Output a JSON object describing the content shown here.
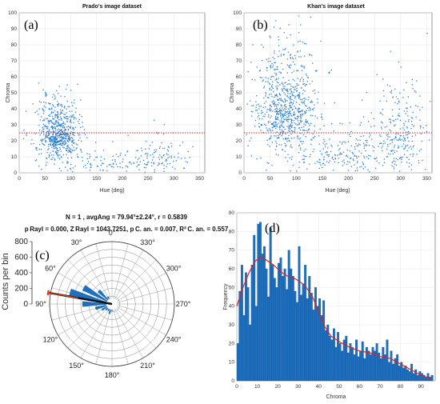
{
  "chart_data": [
    {
      "panel_label": "(a)",
      "type": "scatter",
      "title": "Prado's image dataset",
      "xlabel": "Hue (deg)",
      "ylabel": "Chroma",
      "xlim": [
        0,
        360
      ],
      "ylim": [
        0,
        100
      ],
      "xticks": [
        0,
        50,
        100,
        150,
        200,
        250,
        300,
        350
      ],
      "yticks": [
        0,
        10,
        20,
        30,
        40,
        50,
        60,
        70,
        80,
        90,
        100
      ],
      "threshold_line": {
        "y": 25,
        "color": "#e02020",
        "style": "dotted"
      },
      "point_color": "#2a7fd4",
      "clusters": [
        {
          "hue_center": 75,
          "hue_spread": 20,
          "chroma_center": 25,
          "chroma_spread": 12,
          "count": 650
        },
        {
          "hue_center": 270,
          "hue_spread": 25,
          "chroma_center": 12,
          "chroma_spread": 9,
          "count": 80
        },
        {
          "hue_center": 180,
          "hue_spread": 70,
          "chroma_center": 6,
          "chroma_spread": 5,
          "count": 140
        }
      ]
    },
    {
      "panel_label": "(b)",
      "type": "scatter",
      "title": "Khan's image dataset",
      "xlabel": "Hue (deg)",
      "ylabel": "Chroma",
      "xlim": [
        0,
        360
      ],
      "ylim": [
        0,
        100
      ],
      "xticks": [
        0,
        50,
        100,
        150,
        200,
        250,
        300,
        350
      ],
      "yticks": [
        0,
        10,
        20,
        30,
        40,
        50,
        60,
        70,
        80,
        90,
        100
      ],
      "threshold_line": {
        "y": 25,
        "color": "#e02020",
        "style": "dotted"
      },
      "point_color": "#2a7fd4",
      "clusters": [
        {
          "hue_center": 80,
          "hue_spread": 30,
          "chroma_center": 40,
          "chroma_spread": 22,
          "count": 800
        },
        {
          "hue_center": 300,
          "hue_spread": 25,
          "chroma_center": 25,
          "chroma_spread": 18,
          "count": 220
        },
        {
          "hue_center": 200,
          "hue_spread": 60,
          "chroma_center": 12,
          "chroma_spread": 10,
          "count": 250
        }
      ]
    },
    {
      "panel_label": "(c)",
      "type": "polar-histogram",
      "header_line1": "N = 1 , avgAng = 79.94°±2.24°, r = 0.5839",
      "header_line2": "p Rayl = 0.000, Z Rayl = 1043.7251, p C. an. = 0.007, R² C. an. = 0.557",
      "ylabel": "Counts per bin",
      "radial_ticks": [
        0,
        200,
        400,
        600,
        800
      ],
      "angle_labels": [
        "0°",
        "330°",
        "300°",
        "270°",
        "240°",
        "210°",
        "180°",
        "150°",
        "120°",
        "90°",
        "60°",
        "30°"
      ],
      "bar_color": "#1f6fbf",
      "mean_angle": 79.94,
      "mean_vector_color": "#111111",
      "ci_color": "#e8431c",
      "bins_deg": [
        0,
        15,
        30,
        45,
        60,
        75,
        90,
        105,
        120,
        135,
        150,
        165,
        180,
        195,
        210,
        225,
        240,
        255,
        270,
        285,
        300,
        315,
        330,
        345
      ],
      "bin_counts": [
        40,
        60,
        110,
        240,
        420,
        560,
        380,
        220,
        150,
        110,
        100,
        130,
        90,
        60,
        40,
        30,
        30,
        40,
        60,
        70,
        60,
        50,
        40,
        35
      ]
    },
    {
      "panel_label": "(d)",
      "type": "bar",
      "xlabel": "Chroma",
      "ylabel": "Frequency",
      "xlim": [
        0,
        97
      ],
      "ylim": [
        0,
        90
      ],
      "xticks": [
        0,
        10,
        20,
        30,
        40,
        50,
        60,
        70,
        80,
        90
      ],
      "yticks": [
        0,
        10,
        20,
        30,
        40,
        50,
        60,
        70,
        80,
        90
      ],
      "bar_color": "#1f6fbf",
      "fit_line_color": "#e02020",
      "bin_centers": [
        0.5,
        1.5,
        2.5,
        3.5,
        4.5,
        5.5,
        6.5,
        7.5,
        8.5,
        9.5,
        10.5,
        11.5,
        12.5,
        13.5,
        14.5,
        15.5,
        16.5,
        17.5,
        18.5,
        19.5,
        20.5,
        21.5,
        22.5,
        23.5,
        24.5,
        25.5,
        26.5,
        27.5,
        28.5,
        29.5,
        30.5,
        31.5,
        32.5,
        33.5,
        34.5,
        35.5,
        36.5,
        37.5,
        38.5,
        39.5,
        40.5,
        41.5,
        42.5,
        43.5,
        44.5,
        45.5,
        46.5,
        47.5,
        48.5,
        49.5,
        50.5,
        51.5,
        52.5,
        53.5,
        54.5,
        55.5,
        56.5,
        57.5,
        58.5,
        59.5,
        60.5,
        61.5,
        62.5,
        63.5,
        64.5,
        65.5,
        66.5,
        67.5,
        68.5,
        69.5,
        70.5,
        71.5,
        72.5,
        73.5,
        74.5,
        75.5,
        76.5,
        77.5,
        78.5,
        79.5,
        80.5,
        81.5,
        82.5,
        83.5,
        84.5,
        85.5,
        86.5,
        87.5,
        88.5,
        89.5,
        90.5,
        91.5,
        92.5,
        93.5,
        94.5,
        95.5
      ],
      "frequencies": [
        20,
        48,
        62,
        35,
        58,
        50,
        30,
        62,
        78,
        40,
        84,
        85,
        68,
        72,
        60,
        45,
        82,
        62,
        55,
        50,
        63,
        66,
        56,
        60,
        49,
        70,
        60,
        56,
        48,
        42,
        72,
        46,
        52,
        62,
        44,
        56,
        47,
        38,
        50,
        40,
        44,
        35,
        43,
        27,
        30,
        24,
        22,
        28,
        18,
        26,
        20,
        16,
        22,
        24,
        15,
        20,
        18,
        14,
        22,
        13,
        16,
        21,
        12,
        18,
        16,
        14,
        18,
        16,
        20,
        15,
        12,
        18,
        14,
        22,
        10,
        16,
        9,
        12,
        14,
        8,
        10,
        7,
        8,
        6,
        5,
        9,
        4,
        6,
        3,
        5,
        4,
        3,
        2,
        4,
        2,
        3
      ],
      "fit_curve": [
        [
          0,
          40
        ],
        [
          3,
          50
        ],
        [
          6,
          58
        ],
        [
          9,
          64
        ],
        [
          11,
          66
        ],
        [
          14,
          65
        ],
        [
          18,
          62
        ],
        [
          22,
          58
        ],
        [
          25,
          56
        ],
        [
          28,
          55
        ],
        [
          31,
          53
        ],
        [
          34,
          50
        ],
        [
          37,
          45
        ],
        [
          40,
          37
        ],
        [
          43,
          29
        ],
        [
          46,
          24
        ],
        [
          50,
          21
        ],
        [
          55,
          18
        ],
        [
          60,
          16
        ],
        [
          65,
          15
        ],
        [
          70,
          13
        ],
        [
          75,
          12
        ],
        [
          80,
          9
        ],
        [
          85,
          6
        ],
        [
          90,
          3
        ],
        [
          95,
          1
        ]
      ]
    }
  ]
}
